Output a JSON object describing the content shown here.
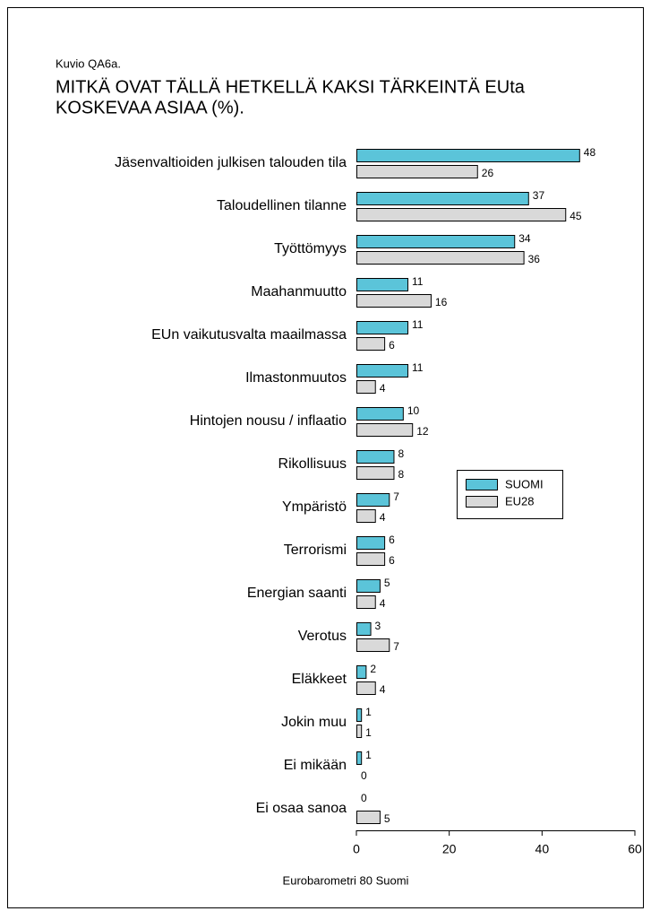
{
  "chart_data": {
    "type": "bar",
    "orientation": "horizontal",
    "figure_label": "Kuvio QA6a.",
    "title": [
      "MITKÄ OVAT TÄLLÄ HETKELLÄ KAKSI TÄRKEINTÄ EUta",
      "KOSKEVAA ASIAA (%)."
    ],
    "source": "Eurobarometri 80 Suomi",
    "categories": [
      "Jäsenvaltioiden julkisen talouden tila",
      "Taloudellinen tilanne",
      "Työttömyys",
      "Maahanmuutto",
      "EUn vaikutusvalta maailmassa",
      "Ilmastonmuutos",
      "Hintojen nousu / inflaatio",
      "Rikollisuus",
      "Ympäristö",
      "Terrorismi",
      "Energian saanti",
      "Verotus",
      "Eläkkeet",
      "Jokin muu",
      "Ei mikään",
      "Ei osaa sanoa"
    ],
    "series": [
      {
        "name": "SUOMI",
        "color": "#5bc4d9",
        "values": [
          48,
          37,
          34,
          11,
          11,
          11,
          10,
          8,
          7,
          6,
          5,
          3,
          2,
          1,
          1,
          0
        ]
      },
      {
        "name": "EU28",
        "color": "#d9d9d9",
        "values": [
          26,
          45,
          36,
          16,
          6,
          4,
          12,
          8,
          4,
          6,
          4,
          7,
          4,
          1,
          0,
          5
        ]
      }
    ],
    "xlim": [
      0,
      60
    ],
    "xticks": [
      0,
      20,
      40,
      60
    ],
    "grid": false,
    "legend": "right"
  }
}
